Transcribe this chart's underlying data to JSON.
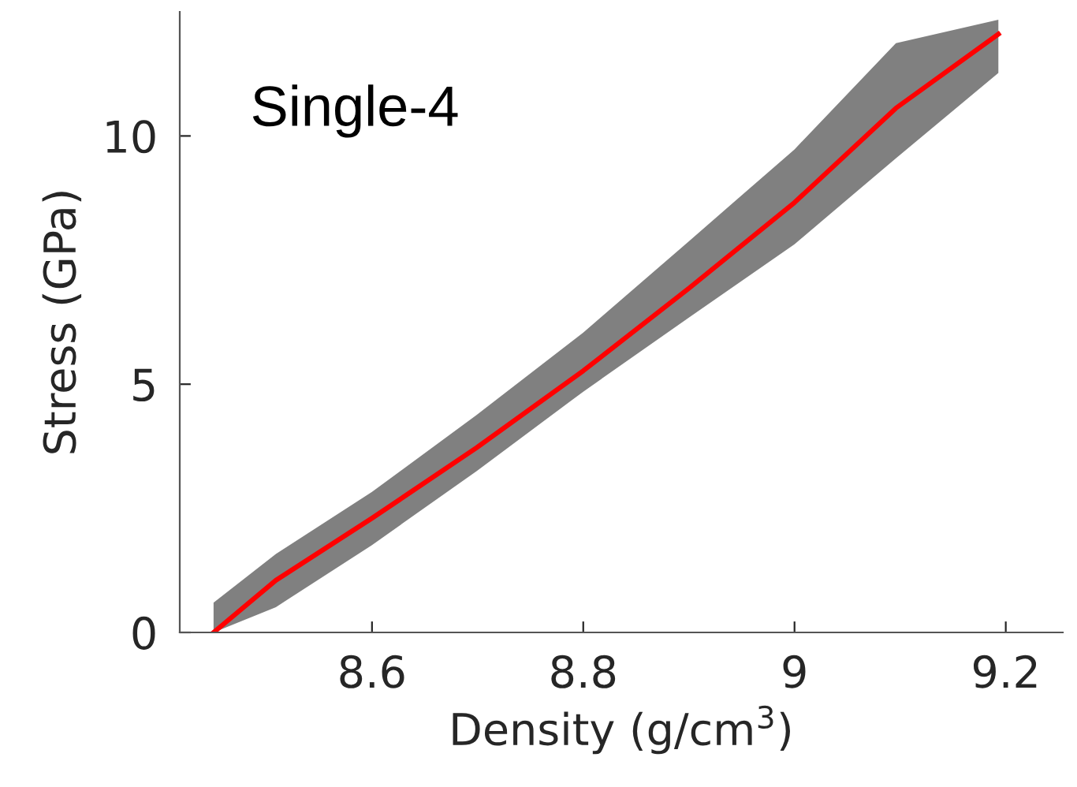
{
  "chart_data": {
    "type": "line",
    "xlabel": "Density (g/cm$^{3}$)",
    "ylabel": "Stress (GPa)",
    "annotations": [
      "Single-4"
    ],
    "x": [
      8.45,
      8.509,
      8.6,
      8.699,
      8.8,
      8.9,
      9.0,
      9.096,
      9.193
    ],
    "series": [
      {
        "color": "#ff0000",
        "values": [
          0,
          1.05,
          2.3,
          3.72,
          5.27,
          6.93,
          8.66,
          10.56,
          12.05
        ],
        "lower": [
          0,
          0.51,
          1.76,
          3.25,
          4.85,
          6.34,
          7.82,
          9.55,
          11.27
        ],
        "upper": [
          0.6,
          1.58,
          2.83,
          4.38,
          6.04,
          7.88,
          9.73,
          11.87,
          12.34
        ]
      }
    ],
    "xlim": [
      8.418,
      9.254
    ],
    "ylim": [
      0,
      12.5
    ],
    "xticks": [
      8.6,
      8.8,
      9,
      9.2
    ],
    "yticks": [
      0,
      5,
      10
    ],
    "grid": false,
    "legend": false,
    "marker": "none",
    "line_style": "solid"
  }
}
